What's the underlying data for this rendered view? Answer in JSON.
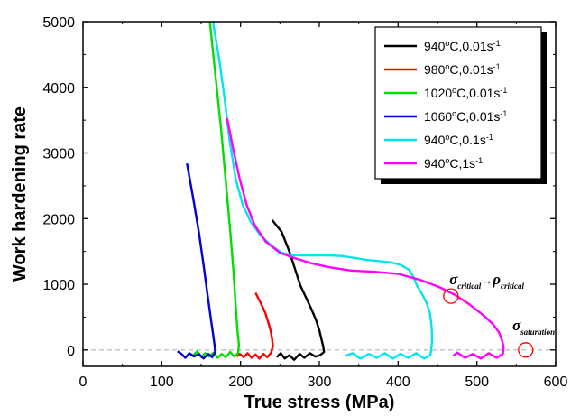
{
  "chart_data": {
    "type": "line",
    "title": "",
    "xlabel": "True stress (MPa)",
    "ylabel": "Work hardening rate",
    "xlim": [
      0,
      600
    ],
    "ylim": [
      -250,
      5000
    ],
    "xticks": [
      0,
      100,
      200,
      300,
      400,
      500,
      600
    ],
    "yticks": [
      0,
      1000,
      2000,
      3000,
      4000,
      5000
    ],
    "grid": false,
    "legend_position": "top-right",
    "zero_reference_line": {
      "y": 0,
      "style": "dashed",
      "color": "#b0b0b0"
    },
    "series": [
      {
        "name": "940°C,0.01s⁻¹",
        "legend": {
          "temp": "940",
          "rate": "0.01s"
        },
        "color": "#000000",
        "points": [
          [
            240,
            1980
          ],
          [
            252,
            1800
          ],
          [
            262,
            1500
          ],
          [
            270,
            1200
          ],
          [
            276,
            980
          ],
          [
            283,
            800
          ],
          [
            290,
            620
          ],
          [
            296,
            450
          ],
          [
            300,
            300
          ],
          [
            303,
            150
          ],
          [
            305,
            50
          ],
          [
            306,
            -30
          ],
          [
            301,
            -80
          ],
          [
            295,
            -100
          ],
          [
            288,
            -50
          ],
          [
            281,
            -120
          ],
          [
            275,
            -60
          ],
          [
            268,
            -150
          ],
          [
            262,
            -80
          ],
          [
            256,
            -130
          ],
          [
            251,
            -50
          ],
          [
            246,
            -110
          ]
        ]
      },
      {
        "name": "980°C,0.01s⁻¹",
        "legend": {
          "temp": "980",
          "rate": "0.01s"
        },
        "color": "#ff0000",
        "points": [
          [
            219,
            870
          ],
          [
            225,
            730
          ],
          [
            231,
            580
          ],
          [
            235,
            430
          ],
          [
            238,
            300
          ],
          [
            240,
            170
          ],
          [
            241,
            60
          ],
          [
            239,
            -40
          ],
          [
            234,
            -110
          ],
          [
            229,
            -60
          ],
          [
            224,
            -130
          ],
          [
            219,
            -70
          ],
          [
            214,
            -120
          ],
          [
            209,
            -50
          ],
          [
            204,
            -110
          ],
          [
            199,
            -60
          ],
          [
            195,
            -100
          ]
        ]
      },
      {
        "name": "1020°C,0.01s⁻¹",
        "legend": {
          "temp": "1020",
          "rate": "0.01s"
        },
        "color": "#00e000",
        "points": [
          [
            161,
            5000
          ],
          [
            168,
            4200
          ],
          [
            175,
            3400
          ],
          [
            181,
            2600
          ],
          [
            187,
            1800
          ],
          [
            191,
            1200
          ],
          [
            194,
            650
          ],
          [
            196,
            300
          ],
          [
            198,
            80
          ],
          [
            197,
            -50
          ],
          [
            192,
            -100
          ],
          [
            187,
            -30
          ],
          [
            181,
            -110
          ],
          [
            176,
            -60
          ],
          [
            171,
            -120
          ],
          [
            166,
            -40
          ],
          [
            160,
            -100
          ],
          [
            155,
            -50
          ],
          [
            150,
            -110
          ],
          [
            145,
            -20
          ],
          [
            140,
            -80
          ]
        ]
      },
      {
        "name": "1060°C,0.01s⁻¹",
        "legend": {
          "temp": "1060",
          "rate": "0.01s"
        },
        "color": "#0000dd",
        "points": [
          [
            132,
            2840
          ],
          [
            140,
            2300
          ],
          [
            147,
            1800
          ],
          [
            153,
            1300
          ],
          [
            158,
            850
          ],
          [
            162,
            500
          ],
          [
            165,
            250
          ],
          [
            167,
            80
          ],
          [
            168,
            -30
          ],
          [
            164,
            -110
          ],
          [
            159,
            -60
          ],
          [
            153,
            -130
          ],
          [
            147,
            -60
          ],
          [
            141,
            -100
          ],
          [
            135,
            -50
          ],
          [
            130,
            -120
          ],
          [
            125,
            -60
          ],
          [
            120,
            -20
          ]
        ]
      },
      {
        "name": "940°C,0.1s⁻¹",
        "legend": {
          "temp": "940",
          "rate": "0.1s"
        },
        "color": "#00e5ee",
        "points": [
          [
            165,
            5000
          ],
          [
            172,
            4500
          ],
          [
            179,
            3900
          ],
          [
            186,
            3200
          ],
          [
            194,
            2600
          ],
          [
            203,
            2200
          ],
          [
            213,
            1950
          ],
          [
            225,
            1750
          ],
          [
            238,
            1600
          ],
          [
            252,
            1480
          ],
          [
            268,
            1440
          ],
          [
            290,
            1440
          ],
          [
            312,
            1440
          ],
          [
            330,
            1430
          ],
          [
            345,
            1400
          ],
          [
            360,
            1370
          ],
          [
            378,
            1350
          ],
          [
            392,
            1330
          ],
          [
            404,
            1290
          ],
          [
            414,
            1220
          ],
          [
            420,
            1100
          ],
          [
            424,
            980
          ],
          [
            430,
            860
          ],
          [
            436,
            720
          ],
          [
            440,
            580
          ],
          [
            442,
            420
          ],
          [
            443,
            260
          ],
          [
            443,
            120
          ],
          [
            442,
            0
          ],
          [
            441,
            -80
          ],
          [
            433,
            -130
          ],
          [
            423,
            -50
          ],
          [
            413,
            -120
          ],
          [
            403,
            -60
          ],
          [
            393,
            -130
          ],
          [
            383,
            -50
          ],
          [
            373,
            -120
          ],
          [
            363,
            -60
          ],
          [
            352,
            -130
          ],
          [
            342,
            -50
          ],
          [
            333,
            -90
          ]
        ]
      },
      {
        "name": "940°C,1s⁻¹",
        "legend": {
          "temp": "940",
          "rate": "1s"
        },
        "color": "#ff00ff",
        "points": [
          [
            183,
            3530
          ],
          [
            190,
            3100
          ],
          [
            199,
            2600
          ],
          [
            208,
            2200
          ],
          [
            218,
            1900
          ],
          [
            232,
            1650
          ],
          [
            250,
            1480
          ],
          [
            268,
            1400
          ],
          [
            290,
            1320
          ],
          [
            312,
            1260
          ],
          [
            340,
            1210
          ],
          [
            370,
            1190
          ],
          [
            400,
            1160
          ],
          [
            430,
            1060
          ],
          [
            452,
            960
          ],
          [
            472,
            840
          ],
          [
            490,
            700
          ],
          [
            506,
            550
          ],
          [
            520,
            400
          ],
          [
            528,
            270
          ],
          [
            532,
            140
          ],
          [
            534,
            40
          ],
          [
            533,
            -60
          ],
          [
            525,
            -120
          ],
          [
            515,
            -50
          ],
          [
            505,
            -130
          ],
          [
            495,
            -60
          ],
          [
            485,
            -120
          ],
          [
            475,
            -40
          ],
          [
            470,
            -90
          ]
        ]
      }
    ],
    "annotations": [
      {
        "id": "critical",
        "x": 467,
        "y": 820,
        "label_x": 465,
        "label_y": 1000,
        "parts": {
          "sym1": "σ",
          "sub1": "critical",
          "arrow": "→",
          "sym2": "ρ",
          "sub2": "critical"
        }
      },
      {
        "id": "saturation",
        "x": 562,
        "y": 0,
        "label_x": 545,
        "label_y": 300,
        "parts": {
          "sym1": "σ",
          "sub1": "saturation"
        }
      }
    ]
  }
}
